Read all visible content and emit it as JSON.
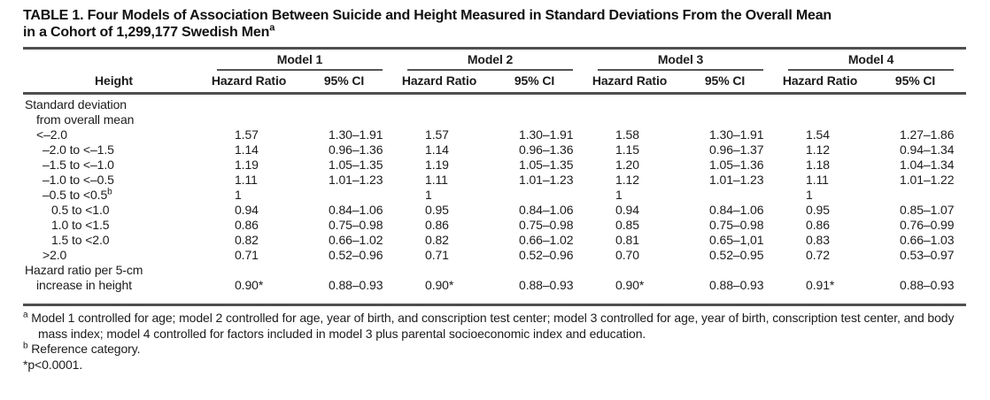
{
  "table": {
    "title_line1": "TABLE 1. Four Models of Association Between Suicide and Height Measured in Standard Deviations From the Overall Mean",
    "title_line2": "in a Cohort of 1,299,177 Swedish Men",
    "title_sup": "a",
    "stub_header": "Height",
    "col_groups": [
      {
        "label": "Model 1"
      },
      {
        "label": "Model 2"
      },
      {
        "label": "Model 3"
      },
      {
        "label": "Model 4"
      }
    ],
    "sub_headers": {
      "hr": "Hazard Ratio",
      "ci": "95% CI"
    },
    "rows": [
      {
        "label": "Standard deviation"
      },
      {
        "label": "from overall mean"
      },
      {
        "label": "<–2.0",
        "m1_hr": "1.57",
        "m1_ci": "1.30–1.91",
        "m2_hr": "1.57",
        "m2_ci": "1.30–1.91",
        "m3_hr": "1.58",
        "m3_ci": "1.30–1.91",
        "m4_hr": "1.54",
        "m4_ci": "1.27–1.86"
      },
      {
        "label": "–2.0 to <–1.5",
        "m1_hr": "1.14",
        "m1_ci": "0.96–1.36",
        "m2_hr": "1.14",
        "m2_ci": "0.96–1.36",
        "m3_hr": "1.15",
        "m3_ci": "0.96–1.37",
        "m4_hr": "1.12",
        "m4_ci": "0.94–1.34"
      },
      {
        "label": "–1.5 to <–1.0",
        "m1_hr": "1.19",
        "m1_ci": "1.05–1.35",
        "m2_hr": "1.19",
        "m2_ci": "1.05–1.35",
        "m3_hr": "1.20",
        "m3_ci": "1.05–1.36",
        "m4_hr": "1.18",
        "m4_ci": "1.04–1.34"
      },
      {
        "label": "–1.0 to <–0.5",
        "m1_hr": "1.11",
        "m1_ci": "1.01–1.23",
        "m2_hr": "1.11",
        "m2_ci": "1.01–1.23",
        "m3_hr": "1.12",
        "m3_ci": "1.01–1.23",
        "m4_hr": "1.11",
        "m4_ci": "1.01–1.22"
      },
      {
        "label": "–0.5 to <0.5",
        "sup": "b",
        "m1_hr": "1",
        "m2_hr": "1",
        "m3_hr": "1",
        "m4_hr": "1"
      },
      {
        "label": "0.5 to <1.0",
        "m1_hr": "0.94",
        "m1_ci": "0.84–1.06",
        "m2_hr": "0.95",
        "m2_ci": "0.84–1.06",
        "m3_hr": "0.94",
        "m3_ci": "0.84–1.06",
        "m4_hr": "0.95",
        "m4_ci": "0.85–1.07"
      },
      {
        "label": "1.0 to <1.5",
        "m1_hr": "0.86",
        "m1_ci": "0.75–0.98",
        "m2_hr": "0.86",
        "m2_ci": "0.75–0.98",
        "m3_hr": "0.85",
        "m3_ci": "0.75–0.98",
        "m4_hr": "0.86",
        "m4_ci": "0.76–0.99"
      },
      {
        "label": "1.5 to <2.0",
        "m1_hr": "0.82",
        "m1_ci": "0.66–1.02",
        "m2_hr": "0.82",
        "m2_ci": "0.66–1.02",
        "m3_hr": "0.81",
        "m3_ci": "0.65–1,01",
        "m4_hr": "0.83",
        "m4_ci": "0.66–1.03"
      },
      {
        "label": ">2.0",
        "m1_hr": "0.71",
        "m1_ci": "0.52–0.96",
        "m2_hr": "0.71",
        "m2_ci": "0.52–0.96",
        "m3_hr": "0.70",
        "m3_ci": "0.52–0.95",
        "m4_hr": "0.72",
        "m4_ci": "0.53–0.97"
      },
      {
        "label": "Hazard ratio per 5-cm"
      },
      {
        "label": "increase in height",
        "m1_hr": "0.90*",
        "m1_ci": "0.88–0.93",
        "m2_hr": "0.90*",
        "m2_ci": "0.88–0.93",
        "m3_hr": "0.90*",
        "m3_ci": "0.88–0.93",
        "m4_hr": "0.91*",
        "m4_ci": "0.88–0.93"
      }
    ],
    "footnotes": {
      "a_sup": "a",
      "a_text": "Model 1 controlled for age; model 2 controlled for age, year of birth, and conscription test center; model 3 controlled for age, year of birth, conscription test center, and body mass index; model 4 controlled for factors included in model 3 plus parental socioeconomic index and education.",
      "b_sup": "b",
      "b_text": "Reference category.",
      "significance": "*p<0.0001."
    }
  }
}
